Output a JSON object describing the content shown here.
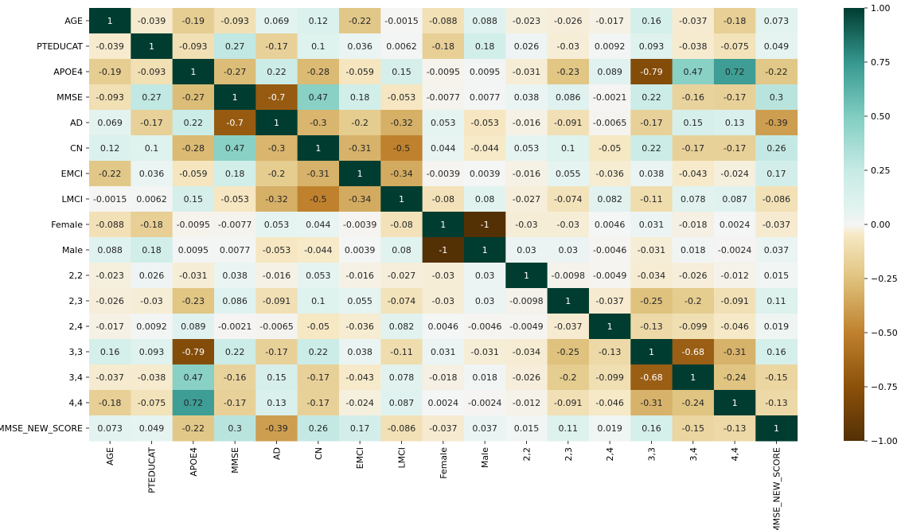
{
  "chart_data": {
    "type": "heatmap",
    "title": "",
    "xlabel": "",
    "ylabel": "",
    "colormap": "BrBG",
    "vmin": -1.0,
    "vmax": 1.0,
    "rows": [
      "AGE",
      "PTEDUCAT",
      "APOE4",
      "MMSE",
      "AD",
      "CN",
      "EMCI",
      "LMCI",
      "Female",
      "Male",
      "2,2",
      "2,3",
      "2,4",
      "3,3",
      "3,4",
      "4,4",
      "MMSE_NEW_SCORE"
    ],
    "columns": [
      "AGE",
      "PTEDUCAT",
      "APOE4",
      "MMSE",
      "AD",
      "CN",
      "EMCI",
      "LMCI",
      "Female",
      "Male",
      "2,2",
      "2,3",
      "2,4",
      "3,3",
      "3,4",
      "4,4",
      "MMSE_NEW_SCORE"
    ],
    "values": [
      [
        "1",
        "-0.039",
        "-0.19",
        "-0.093",
        "0.069",
        "0.12",
        "-0.22",
        "-0.0015",
        "-0.088",
        "0.088",
        "-0.023",
        "-0.026",
        "-0.017",
        "0.16",
        "-0.037",
        "-0.18",
        "0.073"
      ],
      [
        "-0.039",
        "1",
        "-0.093",
        "0.27",
        "-0.17",
        "0.1",
        "0.036",
        "0.0062",
        "-0.18",
        "0.18",
        "0.026",
        "-0.03",
        "0.0092",
        "0.093",
        "-0.038",
        "-0.075",
        "0.049"
      ],
      [
        "-0.19",
        "-0.093",
        "1",
        "-0.27",
        "0.22",
        "-0.28",
        "-0.059",
        "0.15",
        "-0.0095",
        "0.0095",
        "-0.031",
        "-0.23",
        "0.089",
        "-0.79",
        "0.47",
        "0.72",
        "-0.22"
      ],
      [
        "-0.093",
        "0.27",
        "-0.27",
        "1",
        "-0.7",
        "0.47",
        "0.18",
        "-0.053",
        "-0.0077",
        "0.0077",
        "0.038",
        "0.086",
        "-0.0021",
        "0.22",
        "-0.16",
        "-0.17",
        "0.3"
      ],
      [
        "0.069",
        "-0.17",
        "0.22",
        "-0.7",
        "1",
        "-0.3",
        "-0.2",
        "-0.32",
        "0.053",
        "-0.053",
        "-0.016",
        "-0.091",
        "-0.0065",
        "-0.17",
        "0.15",
        "0.13",
        "-0.39"
      ],
      [
        "0.12",
        "0.1",
        "-0.28",
        "0.47",
        "-0.3",
        "1",
        "-0.31",
        "-0.5",
        "0.044",
        "-0.044",
        "0.053",
        "0.1",
        "-0.05",
        "0.22",
        "-0.17",
        "-0.17",
        "0.26"
      ],
      [
        "-0.22",
        "0.036",
        "-0.059",
        "0.18",
        "-0.2",
        "-0.31",
        "1",
        "-0.34",
        "-0.0039",
        "0.0039",
        "-0.016",
        "0.055",
        "-0.036",
        "0.038",
        "-0.043",
        "-0.024",
        "0.17"
      ],
      [
        "-0.0015",
        "0.0062",
        "0.15",
        "-0.053",
        "-0.32",
        "-0.5",
        "-0.34",
        "1",
        "-0.08",
        "0.08",
        "-0.027",
        "-0.074",
        "0.082",
        "-0.11",
        "0.078",
        "0.087",
        "-0.086"
      ],
      [
        "-0.088",
        "-0.18",
        "-0.0095",
        "-0.0077",
        "0.053",
        "0.044",
        "-0.0039",
        "-0.08",
        "1",
        "-1",
        "-0.03",
        "-0.03",
        "0.0046",
        "0.031",
        "-0.018",
        "0.0024",
        "-0.037"
      ],
      [
        "0.088",
        "0.18",
        "0.0095",
        "0.0077",
        "-0.053",
        "-0.044",
        "0.0039",
        "0.08",
        "-1",
        "1",
        "0.03",
        "0.03",
        "-0.0046",
        "-0.031",
        "0.018",
        "-0.0024",
        "0.037"
      ],
      [
        "-0.023",
        "0.026",
        "-0.031",
        "0.038",
        "-0.016",
        "0.053",
        "-0.016",
        "-0.027",
        "-0.03",
        "0.03",
        "1",
        "-0.0098",
        "-0.0049",
        "-0.034",
        "-0.026",
        "-0.012",
        "0.015"
      ],
      [
        "-0.026",
        "-0.03",
        "-0.23",
        "0.086",
        "-0.091",
        "0.1",
        "0.055",
        "-0.074",
        "-0.03",
        "0.03",
        "-0.0098",
        "1",
        "-0.037",
        "-0.25",
        "-0.2",
        "-0.091",
        "0.11"
      ],
      [
        "-0.017",
        "0.0092",
        "0.089",
        "-0.0021",
        "-0.0065",
        "-0.05",
        "-0.036",
        "0.082",
        "0.0046",
        "-0.0046",
        "-0.0049",
        "-0.037",
        "1",
        "-0.13",
        "-0.099",
        "-0.046",
        "0.019"
      ],
      [
        "0.16",
        "0.093",
        "-0.79",
        "0.22",
        "-0.17",
        "0.22",
        "0.038",
        "-0.11",
        "0.031",
        "-0.031",
        "-0.034",
        "-0.25",
        "-0.13",
        "1",
        "-0.68",
        "-0.31",
        "0.16"
      ],
      [
        "-0.037",
        "-0.038",
        "0.47",
        "-0.16",
        "0.15",
        "-0.17",
        "-0.043",
        "0.078",
        "-0.018",
        "0.018",
        "-0.026",
        "-0.2",
        "-0.099",
        "-0.68",
        "1",
        "-0.24",
        "-0.15"
      ],
      [
        "-0.18",
        "-0.075",
        "0.72",
        "-0.17",
        "0.13",
        "-0.17",
        "-0.024",
        "0.087",
        "0.0024",
        "-0.0024",
        "-0.012",
        "-0.091",
        "-0.046",
        "-0.31",
        "-0.24",
        "1",
        "-0.13"
      ],
      [
        "0.073",
        "0.049",
        "-0.22",
        "0.3",
        "-0.39",
        "0.26",
        "0.17",
        "-0.086",
        "-0.037",
        "0.037",
        "0.015",
        "0.11",
        "0.019",
        "0.16",
        "-0.15",
        "-0.13",
        "1"
      ]
    ],
    "colorbar": {
      "ticks": [
        1.0,
        0.75,
        0.5,
        0.25,
        0.0,
        -0.25,
        -0.5,
        -0.75,
        -1.0
      ],
      "tick_labels": [
        "1.00",
        "0.75",
        "0.50",
        "0.25",
        "0.00",
        "−0.25",
        "−0.50",
        "−0.75",
        "−1.00"
      ]
    }
  }
}
